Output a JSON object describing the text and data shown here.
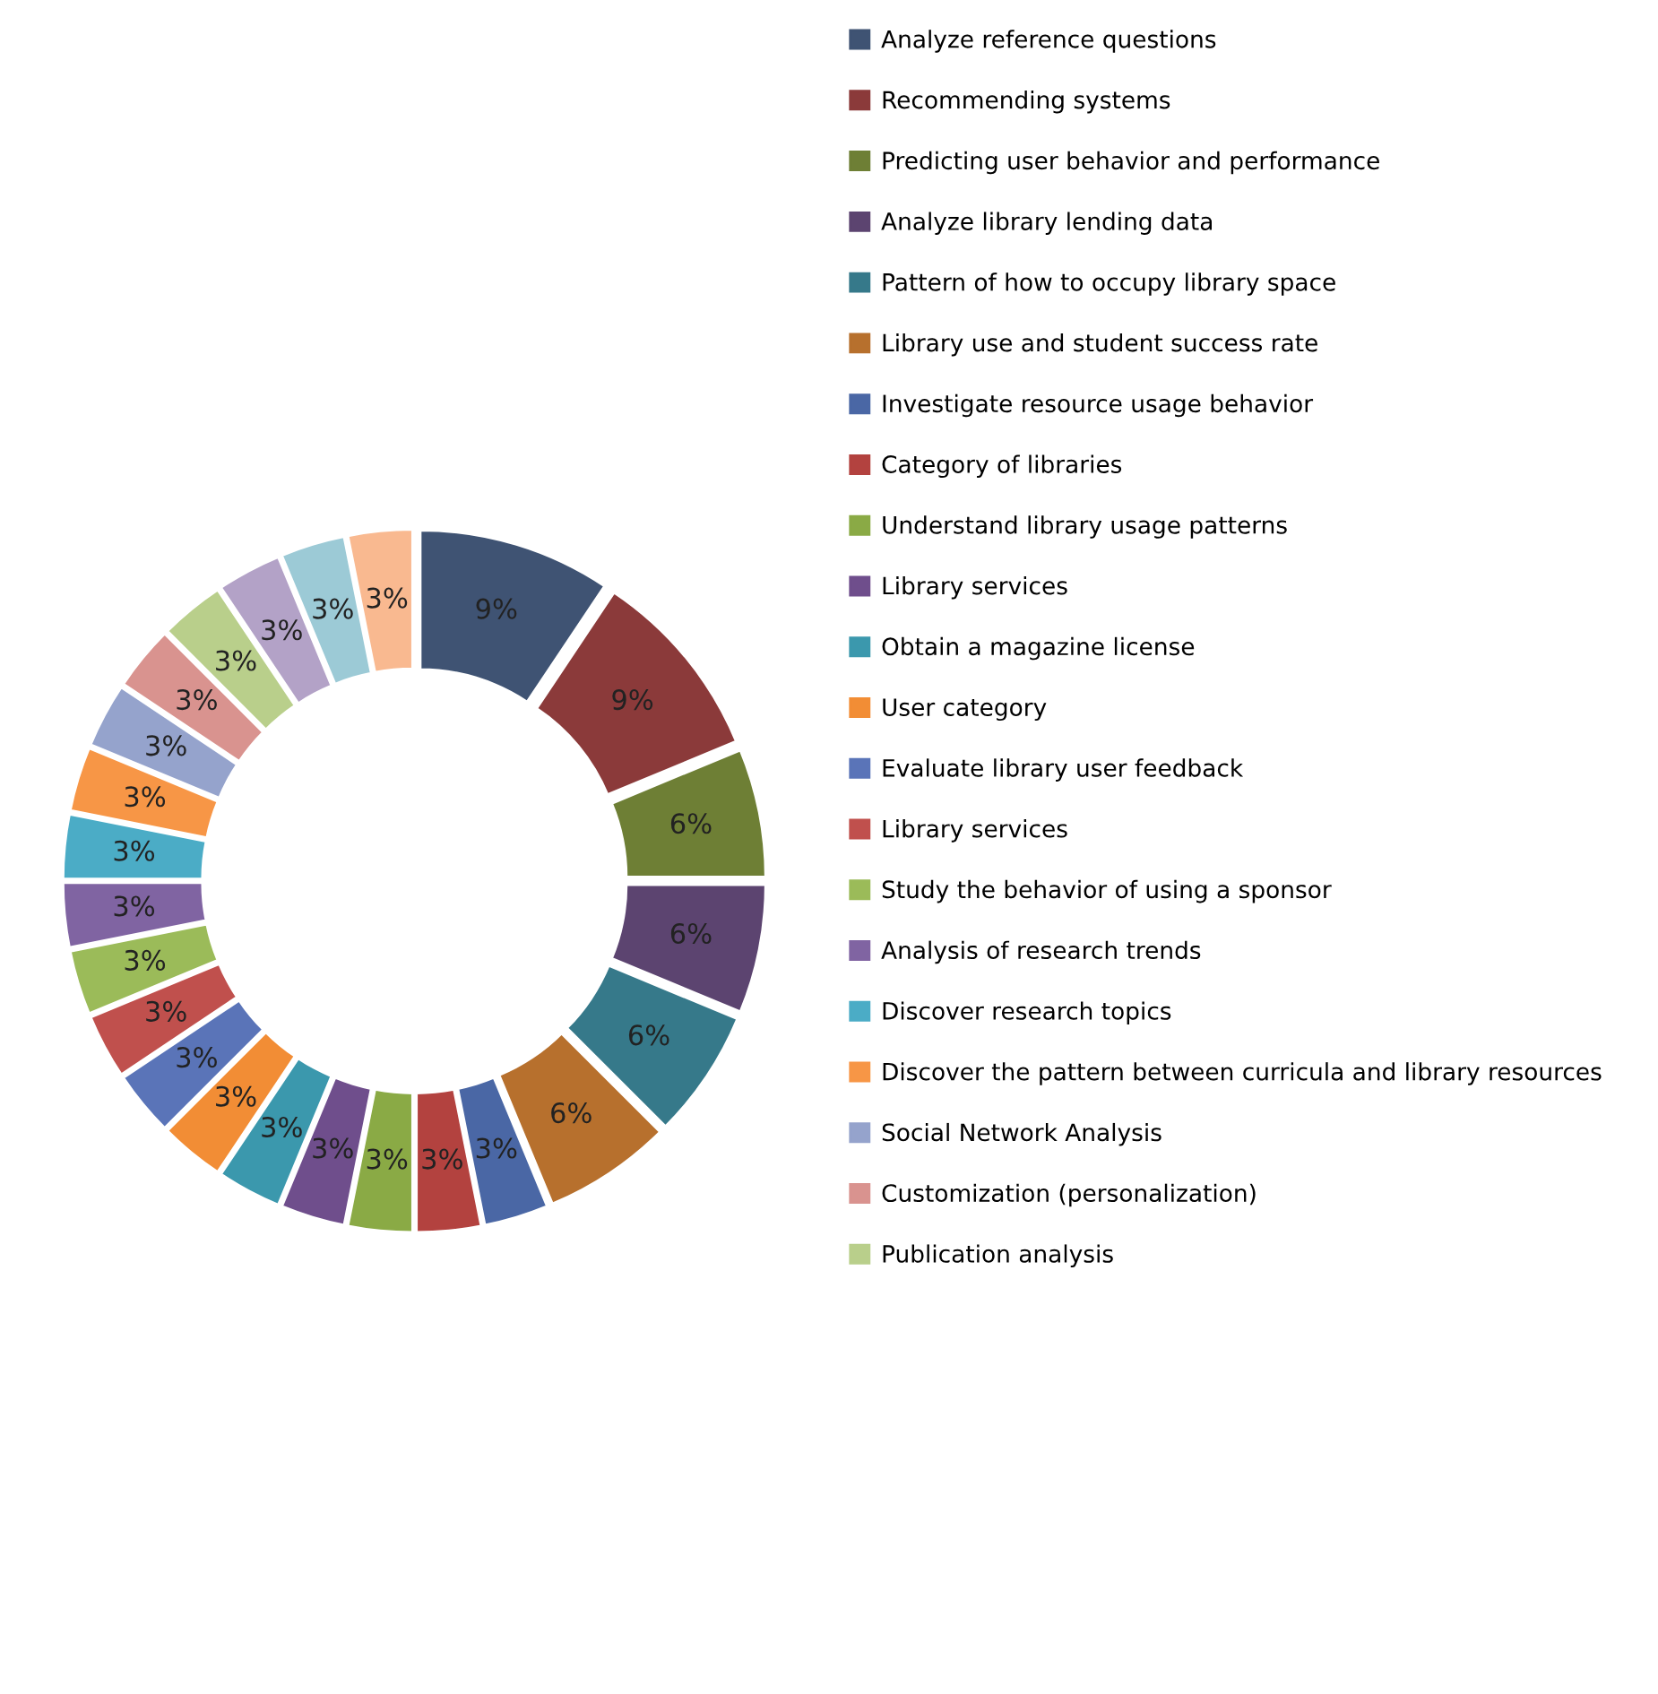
{
  "chart_data": {
    "type": "donut",
    "legend": "right",
    "categories": [
      "Analyze reference questions",
      "Recommending systems",
      "Predicting user behavior and performance",
      "Analyze library lending data",
      "Pattern of how to occupy library space",
      "Library use and student success rate",
      "Investigate resource usage behavior",
      "Category of libraries",
      "Understand library usage patterns",
      "Library services",
      "Obtain a magazine license",
      "User category",
      "Evaluate library user feedback",
      "Library services",
      "Study the behavior of using a sponsor",
      "Analysis of research trends",
      "Discover research topics",
      "Discover the pattern between curricula and library resources",
      "Social Network Analysis",
      "Customization (personalization)",
      "Publication analysis",
      null,
      null,
      null
    ],
    "values": [
      9.375,
      9.375,
      6.25,
      6.25,
      6.25,
      6.25,
      3.125,
      3.125,
      3.125,
      3.125,
      3.125,
      3.125,
      3.125,
      3.125,
      3.125,
      3.125,
      3.125,
      3.125,
      3.125,
      3.125,
      3.125,
      3.125,
      3.125,
      3.125
    ],
    "value_labels": [
      "9%",
      "9%",
      "6%",
      "6%",
      "6%",
      "6%",
      "3%",
      "3%",
      "3%",
      "3%",
      "3%",
      "3%",
      "3%",
      "3%",
      "3%",
      "3%",
      "3%",
      "3%",
      "3%",
      "3%",
      "3%",
      "3%",
      "3%",
      "3%"
    ],
    "colors": [
      "#3f5373",
      "#8b3a3a",
      "#6e7f35",
      "#5c4470",
      "#36798a",
      "#b7702d",
      "#4a67a5",
      "#b3423f",
      "#8aaa45",
      "#6f4e8c",
      "#3b98ad",
      "#f28d35",
      "#5a74b8",
      "#c0504d",
      "#9bbb59",
      "#8064a2",
      "#4bacc6",
      "#f79646",
      "#95a3cc",
      "#d9938f",
      "#b9cf8b",
      "#b3a2c7",
      "#9ccad6",
      "#f9b990"
    ]
  }
}
